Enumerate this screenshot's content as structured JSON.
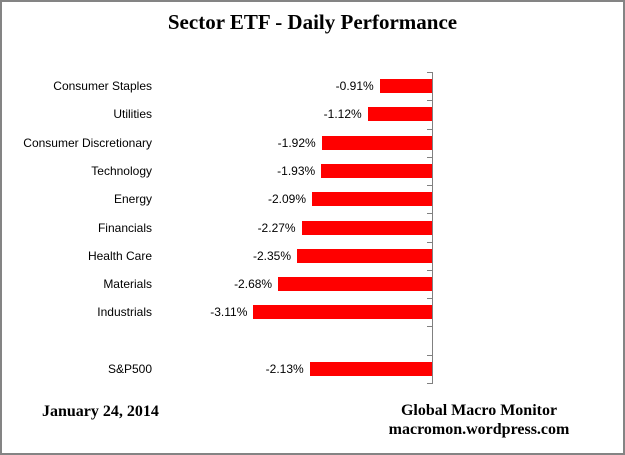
{
  "chart_data": {
    "type": "bar",
    "orientation": "horizontal",
    "title": "Sector ETF - Daily Performance",
    "categories": [
      "Consumer Staples",
      "Utilities",
      "Consumer Discretionary",
      "Technology",
      "Energy",
      "Financials",
      "Health Care",
      "Materials",
      "Industrials",
      "S&P500"
    ],
    "values": [
      -0.91,
      -1.12,
      -1.92,
      -1.93,
      -2.09,
      -2.27,
      -2.35,
      -2.68,
      -3.11,
      -2.13
    ],
    "value_labels": [
      "-0.91%",
      "-1.12%",
      "-1.92%",
      "-1.93%",
      "-2.09%",
      "-2.27%",
      "-2.35%",
      "-2.68%",
      "-3.11%",
      "-2.13%"
    ],
    "gap_before_index": 9,
    "xlim": [
      -3.5,
      0
    ],
    "xlabel": "",
    "ylabel": "",
    "grid": false,
    "legend": false,
    "bar_color": "#FF0000",
    "axis_color": "#808080",
    "label_color": "#000000"
  },
  "footer": {
    "date": "January 24, 2014",
    "source_line1": "Global Macro Monitor",
    "source_line2": "macromon.wordpress.com"
  }
}
